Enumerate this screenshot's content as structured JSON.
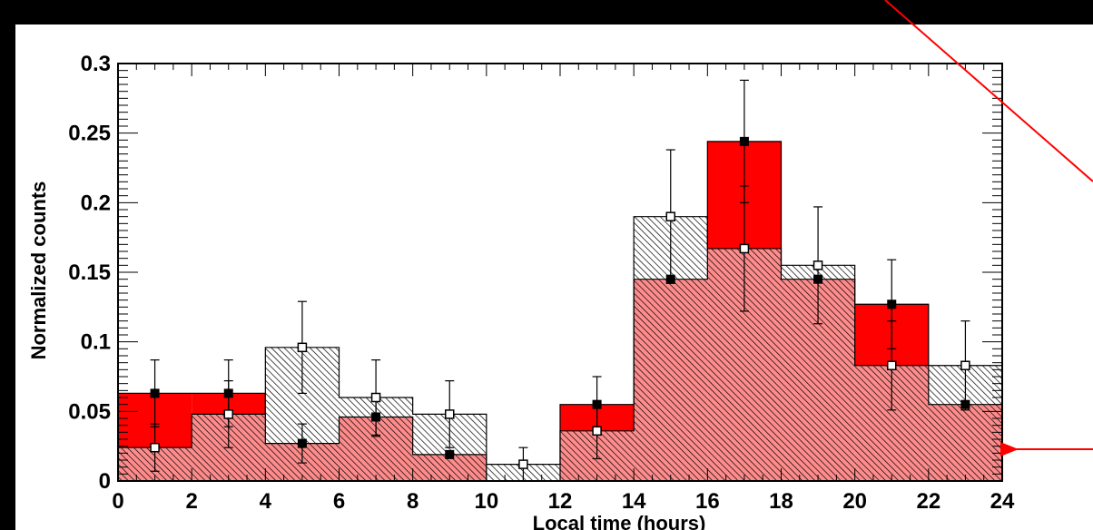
{
  "chart_data": {
    "type": "bar",
    "title": "",
    "xlabel": "Local time (hours)",
    "ylabel": "Normalized counts",
    "xlim": [
      0,
      24
    ],
    "ylim": [
      0,
      0.3
    ],
    "bin_edges": [
      0,
      2,
      4,
      6,
      8,
      10,
      12,
      14,
      16,
      18,
      20,
      22,
      24
    ],
    "x_major_ticks": [
      0,
      2,
      4,
      6,
      8,
      10,
      12,
      14,
      16,
      18,
      20,
      22,
      24
    ],
    "x_tick_labels": [
      "0",
      "2",
      "4",
      "6",
      "8",
      "10",
      "12",
      "14",
      "16",
      "18",
      "20",
      "22",
      "24"
    ],
    "y_major_ticks": [
      0,
      0.05,
      0.1,
      0.15,
      0.2,
      0.25,
      0.3
    ],
    "y_tick_labels": [
      "0",
      "0.05",
      "0.1",
      "0.15",
      "0.2",
      "0.25",
      "0.3"
    ],
    "grid": false,
    "legend": "none",
    "colors": {
      "background": "#000000",
      "plot_frame": "#ffffff",
      "series_filled": "#ff0000",
      "series_hatched": "#ffffff",
      "hatch": "#000000",
      "annotation_arrows": "#ff0000"
    },
    "series": [
      {
        "style": "filled",
        "marker": "filled-square",
        "values": [
          0.063,
          0.063,
          0.027,
          0.046,
          0.019,
          0,
          0.055,
          0.145,
          0.244,
          0.145,
          0.127,
          0.055
        ],
        "err": [
          0.024,
          0.024,
          0.014,
          0.014,
          0.0,
          0,
          0.02,
          0.0,
          0.044,
          0.0,
          0.032,
          0.0
        ]
      },
      {
        "style": "hatched",
        "marker": "open-square",
        "values": [
          0.024,
          0.048,
          0.096,
          0.06,
          0.048,
          0.012,
          0.036,
          0.19,
          0.167,
          0.155,
          0.083,
          0.083
        ],
        "err": [
          0.017,
          0.024,
          0.033,
          0.027,
          0.024,
          0.012,
          0.02,
          0.048,
          0.045,
          0.042,
          0.032,
          0.032
        ]
      }
    ]
  }
}
